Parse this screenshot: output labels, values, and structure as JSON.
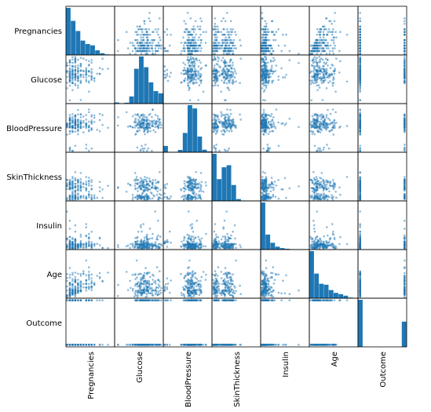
{
  "chart_data": {
    "type": "scatter",
    "title": "",
    "variables": [
      "Pregnancies",
      "Glucose",
      "BloodPressure",
      "SkinThickness",
      "Insulin",
      "Age",
      "Outcome"
    ],
    "diagonal": "histogram",
    "off_diagonal": "scatter",
    "point_color": "#1f77b4",
    "bar_color": "#1f77b4",
    "histogram_counts": {
      "Pregnancies": [
        246,
        178,
        125,
        75,
        57,
        50,
        24,
        9,
        3,
        1
      ],
      "Glucose": [
        5,
        0,
        4,
        32,
        156,
        211,
        163,
        95,
        56,
        46
      ],
      "BloodPressure": [
        35,
        1,
        2,
        13,
        107,
        261,
        243,
        87,
        14,
        5
      ],
      "SkinThickness": [
        231,
        107,
        165,
        175,
        78,
        9,
        2,
        0,
        0,
        1
      ],
      "Insulin": [
        487,
        155,
        70,
        30,
        15,
        8,
        2,
        1,
        0,
        0
      ],
      "Age": [
        300,
        157,
        92,
        86,
        52,
        34,
        26,
        16,
        4,
        1
      ],
      "Outcome": [
        500,
        0,
        0,
        0,
        0,
        0,
        0,
        0,
        0,
        268
      ]
    }
  }
}
